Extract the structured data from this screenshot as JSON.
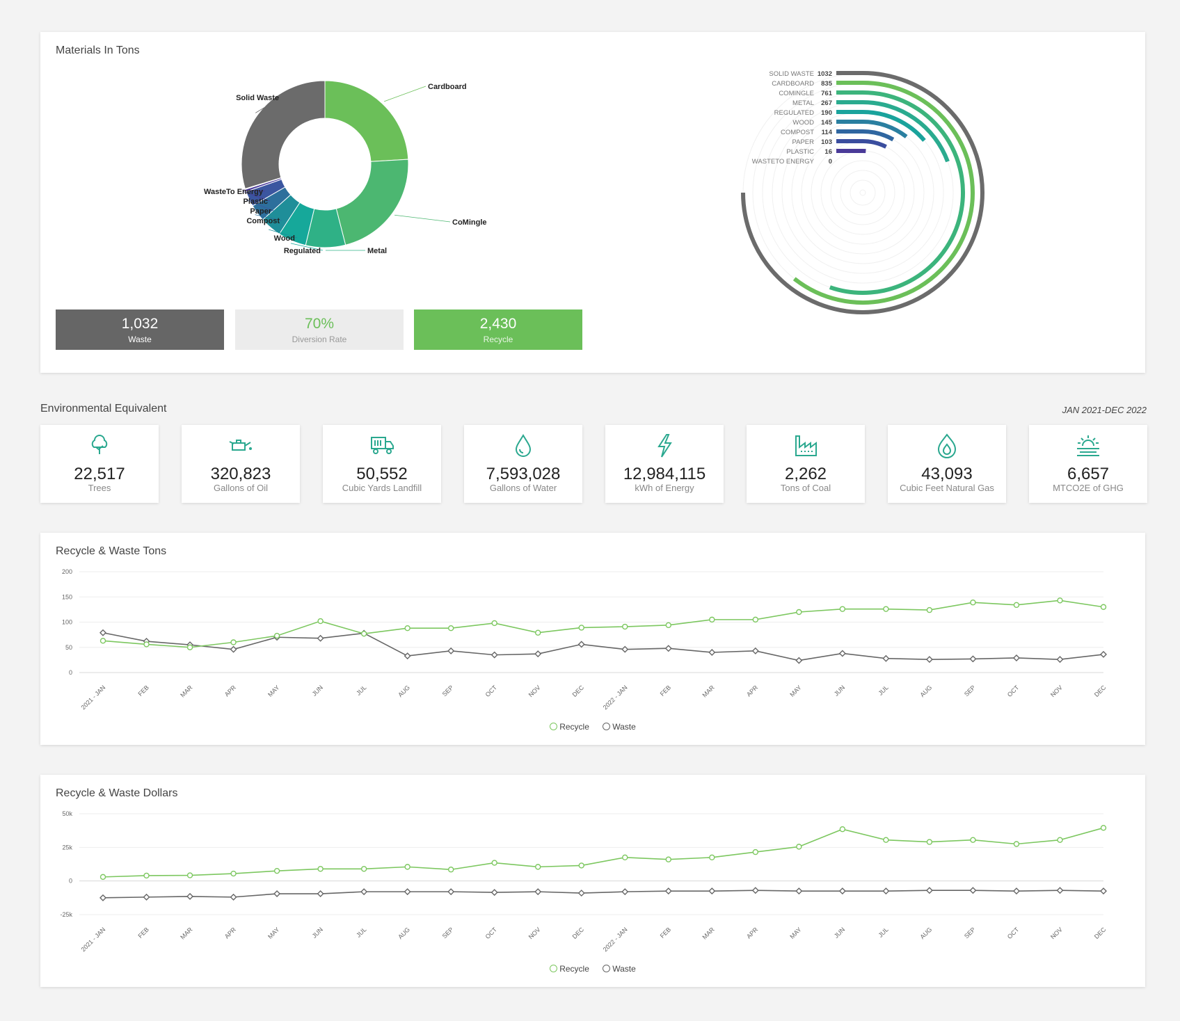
{
  "materials": {
    "title": "Materials In Tons",
    "categories": [
      "Solid Waste",
      "Cardboard",
      "CoMingle",
      "Metal",
      "Regulated",
      "Wood",
      "Compost",
      "Paper",
      "Plastic",
      "WasteTo Energy"
    ],
    "radial_labels": [
      "SOLID WASTE",
      "CARDBOARD",
      "COMINGLE",
      "METAL",
      "REGULATED",
      "WOOD",
      "COMPOST",
      "PAPER",
      "PLASTIC",
      "WASTETO ENERGY"
    ],
    "values": [
      1032,
      835,
      761,
      267,
      190,
      145,
      114,
      103,
      16,
      0
    ],
    "colors": [
      "#6b6b6b",
      "#6bbf59",
      "#4cb771",
      "#2fb186",
      "#16a89a",
      "#1f8e99",
      "#2d6f9c",
      "#3b56a0",
      "#4a3b9c",
      "#533691"
    ],
    "radial_colors": [
      "#6b6b6b",
      "#6bbf59",
      "#3cb47c",
      "#2aab8f",
      "#1aa39c",
      "#2a7fa0",
      "#2f66a0",
      "#3a4d9e",
      "#4a3a98",
      "#523590"
    ]
  },
  "stats": {
    "waste_value": "1,032",
    "waste_label": "Waste",
    "diversion_value": "70%",
    "diversion_label": "Diversion Rate",
    "recycle_value": "2,430",
    "recycle_label": "Recycle"
  },
  "env": {
    "title": "Environmental Equivalent",
    "period": "JAN 2021-DEC 2022",
    "items": [
      {
        "icon": "tree-icon",
        "value": "22,517",
        "label": "Trees"
      },
      {
        "icon": "oil-can-icon",
        "value": "320,823",
        "label": "Gallons of Oil"
      },
      {
        "icon": "truck-icon",
        "value": "50,552",
        "label": "Cubic Yards Landfill"
      },
      {
        "icon": "water-drop-icon",
        "value": "7,593,028",
        "label": "Gallons of Water"
      },
      {
        "icon": "lightning-icon",
        "value": "12,984,115",
        "label": "kWh of Energy"
      },
      {
        "icon": "factory-icon",
        "value": "2,262",
        "label": "Tons of Coal"
      },
      {
        "icon": "flame-icon",
        "value": "43,093",
        "label": "Cubic Feet Natural Gas"
      },
      {
        "icon": "sun-haze-icon",
        "value": "6,657",
        "label": "MTCO2E of GHG"
      }
    ]
  },
  "colors": {
    "recycle": "#7cc75f",
    "waste": "#666666",
    "accent": "#2aa88f"
  },
  "months": [
    "2021 - JAN",
    "FEB",
    "MAR",
    "APR",
    "MAY",
    "JUN",
    "JUL",
    "AUG",
    "SEP",
    "OCT",
    "NOV",
    "DEC",
    "2022 - JAN",
    "FEB",
    "MAR",
    "APR",
    "MAY",
    "JUN",
    "JUL",
    "AUG",
    "SEP",
    "OCT",
    "NOV",
    "DEC"
  ],
  "legend": {
    "recycle": "Recycle",
    "waste": "Waste"
  },
  "chart_data": [
    {
      "type": "line",
      "title": "Recycle & Waste Tons",
      "ylim": [
        0,
        200
      ],
      "yticks": [
        0,
        50,
        100,
        150,
        200
      ],
      "ytick_labels": [
        "0",
        "50",
        "100",
        "150",
        "200"
      ],
      "series": [
        {
          "name": "Recycle",
          "values": [
            63,
            56,
            50,
            60,
            73,
            102,
            77,
            88,
            88,
            98,
            79,
            89,
            91,
            94,
            105,
            105,
            120,
            126,
            126,
            124,
            139,
            134,
            143,
            130
          ]
        },
        {
          "name": "Waste",
          "values": [
            79,
            62,
            55,
            46,
            70,
            68,
            78,
            33,
            43,
            35,
            37,
            56,
            46,
            48,
            40,
            43,
            24,
            38,
            28,
            26,
            27,
            29,
            26,
            36
          ]
        }
      ]
    },
    {
      "type": "line",
      "title": "Recycle & Waste Dollars",
      "ylim": [
        -25000,
        50000
      ],
      "yticks": [
        -25000,
        0,
        25000,
        50000
      ],
      "ytick_labels": [
        "-25k",
        "0",
        "25k",
        "50k"
      ],
      "series": [
        {
          "name": "Recycle",
          "values": [
            3000,
            4000,
            4200,
            5500,
            7500,
            9000,
            9000,
            10500,
            8500,
            13500,
            10500,
            11500,
            17500,
            16000,
            17500,
            21500,
            25500,
            38500,
            30500,
            29000,
            30500,
            27500,
            30500,
            39500
          ]
        },
        {
          "name": "Waste",
          "values": [
            -12500,
            -12000,
            -11500,
            -12000,
            -9500,
            -9500,
            -8000,
            -8000,
            -8000,
            -8500,
            -8000,
            -9000,
            -8000,
            -7500,
            -7500,
            -7000,
            -7500,
            -7500,
            -7500,
            -7000,
            -7000,
            -7500,
            -7000,
            -7500
          ]
        }
      ]
    }
  ]
}
